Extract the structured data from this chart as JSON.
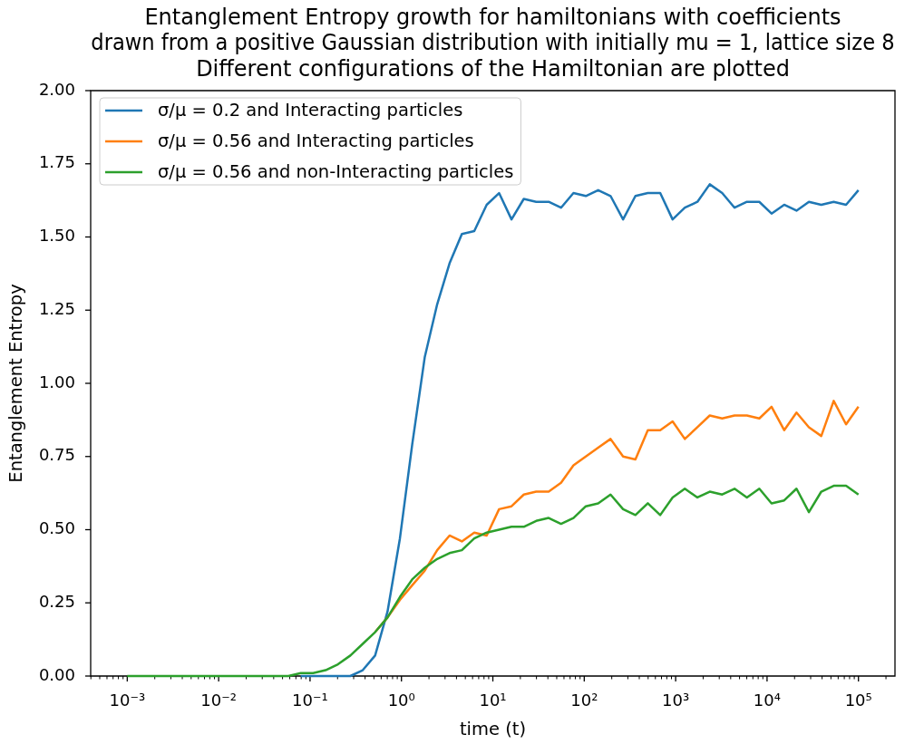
{
  "chart_data": {
    "type": "line",
    "title": "Entanglement Entropy growth for hamiltonians with coefficients\ndrawn from a positive Gaussian distribution with initially mu = 1, lattice size 8\nDifferent configurations of the Hamiltonian are plotted",
    "xlabel": "time (t)",
    "ylabel": "Entanglement Entropy",
    "log": "x",
    "legend": "top left",
    "marker": "none",
    "line_style": "solid",
    "xlim": [
      0.000398,
      251000
    ],
    "xticks": [
      {
        "value": 0.0004,
        "label": null
      },
      {
        "value": 0.0005,
        "label": null
      },
      {
        "value": 0.0006,
        "label": null
      },
      {
        "value": 0.0007,
        "label": null
      },
      {
        "value": 0.0008,
        "label": null
      },
      {
        "value": 0.0009,
        "label": null
      },
      {
        "value": 0.001,
        "label": "10⁻³"
      },
      {
        "value": 0.002,
        "label": null
      },
      {
        "value": 0.003,
        "label": null
      },
      {
        "value": 0.004,
        "label": null
      },
      {
        "value": 0.005,
        "label": null
      },
      {
        "value": 0.006,
        "label": null
      },
      {
        "value": 0.007,
        "label": null
      },
      {
        "value": 0.008,
        "label": null
      },
      {
        "value": 0.009,
        "label": null
      },
      {
        "value": 0.01,
        "label": "10⁻²"
      },
      {
        "value": 0.02,
        "label": null
      },
      {
        "value": 0.03,
        "label": null
      },
      {
        "value": 0.04,
        "label": null
      },
      {
        "value": 0.05,
        "label": null
      },
      {
        "value": 0.06,
        "label": null
      },
      {
        "value": 0.07,
        "label": null
      },
      {
        "value": 0.08,
        "label": null
      },
      {
        "value": 0.09,
        "label": null
      },
      {
        "value": 0.1,
        "label": "10⁻¹"
      },
      {
        "value": 0.2,
        "label": null
      },
      {
        "value": 0.3,
        "label": null
      },
      {
        "value": 0.4,
        "label": null
      },
      {
        "value": 0.5,
        "label": null
      },
      {
        "value": 0.6,
        "label": null
      },
      {
        "value": 0.7,
        "label": null
      },
      {
        "value": 0.8,
        "label": null
      },
      {
        "value": 0.9,
        "label": null
      },
      {
        "value": 1,
        "label": "10⁰"
      },
      {
        "value": 2,
        "label": null
      },
      {
        "value": 3,
        "label": null
      },
      {
        "value": 4,
        "label": null
      },
      {
        "value": 5,
        "label": null
      },
      {
        "value": 6,
        "label": null
      },
      {
        "value": 7,
        "label": null
      },
      {
        "value": 8,
        "label": null
      },
      {
        "value": 9,
        "label": null
      },
      {
        "value": 10,
        "label": "10¹"
      },
      {
        "value": 20,
        "label": null
      },
      {
        "value": 30,
        "label": null
      },
      {
        "value": 40,
        "label": null
      },
      {
        "value": 50,
        "label": null
      },
      {
        "value": 60,
        "label": null
      },
      {
        "value": 70,
        "label": null
      },
      {
        "value": 80,
        "label": null
      },
      {
        "value": 90,
        "label": null
      },
      {
        "value": 100,
        "label": "10²"
      },
      {
        "value": 200,
        "label": null
      },
      {
        "value": 300,
        "label": null
      },
      {
        "value": 400,
        "label": null
      },
      {
        "value": 500,
        "label": null
      },
      {
        "value": 600,
        "label": null
      },
      {
        "value": 700,
        "label": null
      },
      {
        "value": 800,
        "label": null
      },
      {
        "value": 900,
        "label": null
      },
      {
        "value": 1000,
        "label": "10³"
      },
      {
        "value": 2000,
        "label": null
      },
      {
        "value": 3000,
        "label": null
      },
      {
        "value": 4000,
        "label": null
      },
      {
        "value": 5000,
        "label": null
      },
      {
        "value": 6000,
        "label": null
      },
      {
        "value": 7000,
        "label": null
      },
      {
        "value": 8000,
        "label": null
      },
      {
        "value": 9000,
        "label": null
      },
      {
        "value": 10000,
        "label": "10⁴"
      },
      {
        "value": 20000,
        "label": null
      },
      {
        "value": 30000,
        "label": null
      },
      {
        "value": 40000,
        "label": null
      },
      {
        "value": 50000,
        "label": null
      },
      {
        "value": 60000,
        "label": null
      },
      {
        "value": 70000,
        "label": null
      },
      {
        "value": 80000,
        "label": null
      },
      {
        "value": 90000,
        "label": null
      },
      {
        "value": 100000,
        "label": "10⁵"
      },
      {
        "value": 200000,
        "label": null
      }
    ],
    "ylim": [
      0,
      2
    ],
    "yticks": [
      {
        "value": 0,
        "label": "0.00"
      },
      {
        "value": 0.25,
        "label": "0.25"
      },
      {
        "value": 0.5,
        "label": "0.50"
      },
      {
        "value": 0.75,
        "label": "0.75"
      },
      {
        "value": 1,
        "label": "1.00"
      },
      {
        "value": 1.25,
        "label": "1.25"
      },
      {
        "value": 1.5,
        "label": "1.50"
      },
      {
        "value": 1.75,
        "label": "1.75"
      },
      {
        "value": 2,
        "label": "2.00"
      }
    ],
    "x": [
      0.001,
      0.00137,
      0.00187,
      0.00255,
      0.00349,
      0.00476,
      0.00651,
      0.0089,
      0.0122,
      0.0166,
      0.0227,
      0.031,
      0.0424,
      0.0579,
      0.0791,
      0.108,
      0.148,
      0.202,
      0.276,
      0.377,
      0.515,
      0.704,
      0.962,
      1.31,
      1.8,
      2.46,
      3.36,
      4.58,
      6.26,
      8.56,
      11.7,
      16,
      21.8,
      29.8,
      40.8,
      55.7,
      76.2,
      104,
      142,
      194,
      266,
      363,
      496,
      678,
      926,
      1260,
      1730,
      2360,
      3230,
      4410,
      6020,
      8230,
      11200,
      15400,
      21000,
      28700,
      39200,
      53600,
      73200,
      100000
    ],
    "series": [
      {
        "name": "σ/μ = 0.2 and Interacting particles",
        "color": "#1f77b4",
        "x": [
          0.0791,
          0.108,
          0.148,
          0.202,
          0.276,
          0.377,
          0.515,
          0.704,
          0.962,
          1.31,
          1.8,
          2.46,
          3.36,
          4.58,
          6.26,
          8.56,
          11.7,
          16,
          21.8,
          29.8,
          40.8,
          55.7,
          76.2,
          104,
          142,
          194,
          266,
          363,
          496,
          678,
          926,
          1260,
          1730,
          2360,
          3230,
          4410,
          6020,
          8230,
          11200,
          15400,
          21000,
          28700,
          39200,
          53600,
          73200,
          100000
        ],
        "values": [
          0,
          0,
          0,
          0,
          0,
          0.02,
          0.07,
          0.22,
          0.47,
          0.79,
          1.09,
          1.27,
          1.41,
          1.51,
          1.52,
          1.61,
          1.65,
          1.56,
          1.63,
          1.62,
          1.62,
          1.6,
          1.65,
          1.64,
          1.66,
          1.64,
          1.56,
          1.64,
          1.65,
          1.65,
          1.56,
          1.6,
          1.62,
          1.68,
          1.65,
          1.6,
          1.62,
          1.62,
          1.58,
          1.61,
          1.59,
          1.62,
          1.61,
          1.62,
          1.61,
          1.66
        ]
      },
      {
        "name": "σ/μ = 0.56 and Interacting particles",
        "color": "#ff7f0e",
        "x": [
          0.515,
          0.704,
          0.962,
          1.31,
          1.8,
          2.46,
          3.36,
          4.58,
          6.26,
          8.56,
          11.7,
          16,
          21.8,
          29.8,
          40.8,
          55.7,
          76.2,
          104,
          142,
          194,
          266,
          363,
          496,
          678,
          926,
          1260,
          1730,
          2360,
          3230,
          4410,
          6020,
          8230,
          11200,
          15400,
          21000,
          28700,
          39200,
          53600,
          73200,
          100000
        ],
        "values": [
          0.15,
          0.2,
          0.26,
          0.31,
          0.36,
          0.43,
          0.48,
          0.46,
          0.49,
          0.48,
          0.57,
          0.58,
          0.62,
          0.63,
          0.63,
          0.66,
          0.72,
          0.75,
          0.78,
          0.81,
          0.75,
          0.74,
          0.84,
          0.84,
          0.87,
          0.81,
          0.85,
          0.89,
          0.88,
          0.89,
          0.89,
          0.88,
          0.92,
          0.84,
          0.9,
          0.85,
          0.82,
          0.94,
          0.86,
          0.92
        ]
      },
      {
        "name": "σ/μ = 0.56 and non-Interacting particles",
        "color": "#2ca02c",
        "values": [
          0,
          0,
          0,
          0,
          0,
          0,
          0,
          0,
          0,
          0,
          0,
          0,
          0,
          0,
          0.01,
          0.01,
          0.02,
          0.04,
          0.07,
          0.11,
          0.15,
          0.2,
          0.27,
          0.33,
          0.37,
          0.4,
          0.42,
          0.43,
          0.47,
          0.49,
          0.5,
          0.51,
          0.51,
          0.53,
          0.54,
          0.52,
          0.54,
          0.58,
          0.59,
          0.62,
          0.57,
          0.55,
          0.59,
          0.55,
          0.61,
          0.64,
          0.61,
          0.63,
          0.62,
          0.64,
          0.61,
          0.64,
          0.59,
          0.6,
          0.64,
          0.56,
          0.63,
          0.65,
          0.65,
          0.62
        ]
      }
    ]
  }
}
